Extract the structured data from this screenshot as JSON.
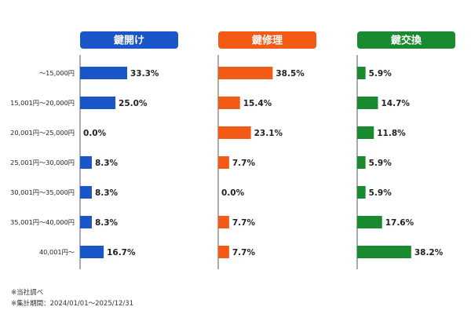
{
  "chart_data": {
    "type": "bar",
    "orientation": "horizontal",
    "categories": [
      "～15,000円",
      "15,001円～20,000円",
      "20,001円～25,000円",
      "25,001円～30,000円",
      "30,001円～35,000円",
      "35,001円～40,000円",
      "40,001円～"
    ],
    "series": [
      {
        "name": "鍵開け",
        "color": "#1a56c8",
        "values": [
          33.3,
          25.0,
          0.0,
          8.3,
          8.3,
          8.3,
          16.7
        ]
      },
      {
        "name": "鍵修理",
        "color": "#f25a16",
        "values": [
          38.5,
          15.4,
          23.1,
          7.7,
          0.0,
          7.7,
          7.7
        ]
      },
      {
        "name": "鍵交換",
        "color": "#1a8a30",
        "values": [
          5.9,
          14.7,
          11.8,
          5.9,
          5.9,
          17.6,
          38.2
        ]
      }
    ],
    "value_suffix": "%",
    "xlim": [
      0,
      50
    ],
    "grid": false,
    "legend": "panel headers"
  },
  "notes": {
    "line1": "※当社調べ",
    "line2": "※集計期間：2024/01/01～2025/12/31"
  }
}
